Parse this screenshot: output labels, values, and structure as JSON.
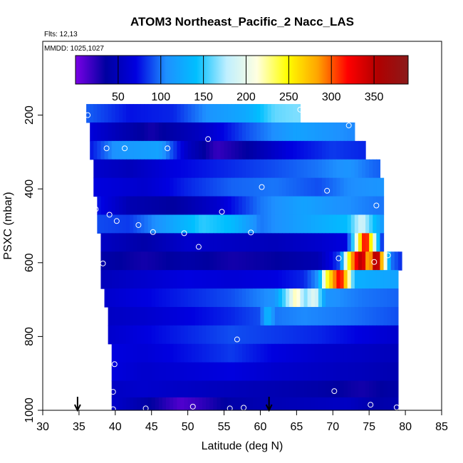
{
  "chart_data": {
    "type": "heatmap",
    "title": "ATOM3 Northeast_Pacific_2 Nacc_LAS",
    "flights_label": "Flts: 12,13",
    "date_label": "MMDD: 1025,1027",
    "xlabel": "Latitude (deg N)",
    "ylabel": "PSXC (mbar)",
    "xlim": [
      30,
      85
    ],
    "ylim": [
      1000,
      0
    ],
    "x_ticks": [
      "30",
      "35",
      "40",
      "45",
      "50",
      "55",
      "60",
      "65",
      "70",
      "75",
      "80",
      "85"
    ],
    "y_ticks": [
      "200",
      "400",
      "600",
      "800",
      "1000"
    ],
    "colorbar": {
      "range": [
        0,
        390
      ],
      "ticks": [
        "50",
        "100",
        "150",
        "200",
        "250",
        "300",
        "350"
      ],
      "colors": [
        "#7a00e6",
        "#0000a0",
        "#0000e0",
        "#1e90ff",
        "#00bfff",
        "#bfefff",
        "#ffffe0",
        "#ffff00",
        "#ffa500",
        "#ff0000",
        "#b00000",
        "#8b1a1a"
      ]
    },
    "pressure_bands": [
      {
        "p_top": 170,
        "p_bot": 220,
        "lat_min": 36.0,
        "lat_max": 65.5,
        "values": [
          [
            36,
            95
          ],
          [
            42,
            75
          ],
          [
            48,
            80
          ],
          [
            53,
            110
          ],
          [
            58,
            125
          ],
          [
            62,
            160
          ],
          [
            65,
            165
          ]
        ]
      },
      {
        "p_top": 220,
        "p_bot": 270,
        "lat_min": 36.5,
        "lat_max": 73.0,
        "values": [
          [
            36,
            70
          ],
          [
            40,
            50
          ],
          [
            45,
            30
          ],
          [
            52,
            55
          ],
          [
            58,
            90
          ],
          [
            65,
            120
          ],
          [
            72,
            105
          ]
        ]
      },
      {
        "p_top": 270,
        "p_bot": 320,
        "lat_min": 36.5,
        "lat_max": 74.5,
        "values": [
          [
            36,
            70
          ],
          [
            40,
            110
          ],
          [
            46,
            120
          ],
          [
            50,
            55
          ],
          [
            54,
            20
          ],
          [
            58,
            35
          ],
          [
            64,
            70
          ],
          [
            70,
            85
          ],
          [
            74,
            80
          ]
        ]
      },
      {
        "p_top": 320,
        "p_bot": 370,
        "lat_min": 37.0,
        "lat_max": 76.5,
        "values": [
          [
            37,
            60
          ],
          [
            42,
            50
          ],
          [
            48,
            70
          ],
          [
            55,
            80
          ],
          [
            62,
            90
          ],
          [
            68,
            100
          ],
          [
            72,
            110
          ],
          [
            76,
            95
          ]
        ]
      },
      {
        "p_top": 370,
        "p_bot": 420,
        "lat_min": 37.0,
        "lat_max": 77.0,
        "values": [
          [
            37,
            70
          ],
          [
            44,
            60
          ],
          [
            50,
            80
          ],
          [
            56,
            95
          ],
          [
            62,
            100
          ],
          [
            68,
            90
          ],
          [
            72,
            105
          ],
          [
            76,
            110
          ]
        ]
      },
      {
        "p_top": 420,
        "p_bot": 470,
        "lat_min": 37.5,
        "lat_max": 77.0,
        "values": [
          [
            37,
            80
          ],
          [
            42,
            45
          ],
          [
            48,
            35
          ],
          [
            54,
            60
          ],
          [
            60,
            100
          ],
          [
            66,
            120
          ],
          [
            70,
            110
          ],
          [
            76,
            100
          ]
        ]
      },
      {
        "p_top": 470,
        "p_bot": 520,
        "lat_min": 37.5,
        "lat_max": 77.0,
        "values": [
          [
            37,
            90
          ],
          [
            42,
            85
          ],
          [
            46,
            110
          ],
          [
            52,
            150
          ],
          [
            56,
            140
          ],
          [
            60,
            100
          ],
          [
            66,
            120
          ],
          [
            72,
            140
          ],
          [
            74,
            190
          ],
          [
            75,
            160
          ],
          [
            77,
            110
          ]
        ]
      },
      {
        "p_top": 520,
        "p_bot": 570,
        "lat_min": 38.0,
        "lat_max": 77.0,
        "values": [
          [
            38,
            55
          ],
          [
            44,
            40
          ],
          [
            50,
            60
          ],
          [
            56,
            55
          ],
          [
            62,
            50
          ],
          [
            68,
            60
          ],
          [
            72,
            70
          ],
          [
            73.5,
            230
          ],
          [
            74.5,
            340
          ],
          [
            75.5,
            220
          ],
          [
            77,
            60
          ]
        ]
      },
      {
        "p_top": 570,
        "p_bot": 620,
        "lat_min": 38.0,
        "lat_max": 79.5,
        "values": [
          [
            38,
            40
          ],
          [
            44,
            30
          ],
          [
            50,
            40
          ],
          [
            56,
            30
          ],
          [
            62,
            35
          ],
          [
            68,
            45
          ],
          [
            71,
            90
          ],
          [
            72,
            230
          ],
          [
            73,
            310
          ],
          [
            74,
            360
          ],
          [
            75,
            260
          ],
          [
            76,
            380
          ],
          [
            77,
            240
          ],
          [
            78,
            100
          ],
          [
            79.5,
            80
          ]
        ]
      },
      {
        "p_top": 620,
        "p_bot": 670,
        "lat_min": 38.0,
        "lat_max": 79.0,
        "values": [
          [
            38,
            50
          ],
          [
            44,
            60
          ],
          [
            50,
            70
          ],
          [
            56,
            65
          ],
          [
            62,
            70
          ],
          [
            66,
            80
          ],
          [
            68,
            110
          ],
          [
            69,
            230
          ],
          [
            70,
            280
          ],
          [
            71,
            330
          ],
          [
            72,
            250
          ],
          [
            73,
            130
          ],
          [
            79,
            120
          ]
        ]
      },
      {
        "p_top": 670,
        "p_bot": 720,
        "lat_min": 38.5,
        "lat_max": 79.0,
        "values": [
          [
            38.5,
            60
          ],
          [
            44,
            70
          ],
          [
            50,
            80
          ],
          [
            56,
            90
          ],
          [
            62,
            110
          ],
          [
            64,
            180
          ],
          [
            65,
            230
          ],
          [
            66,
            160
          ],
          [
            67.5,
            200
          ],
          [
            69,
            110
          ],
          [
            74,
            100
          ],
          [
            79,
            95
          ]
        ]
      },
      {
        "p_top": 720,
        "p_bot": 770,
        "lat_min": 39.0,
        "lat_max": 79.0,
        "values": [
          [
            39,
            55
          ],
          [
            44,
            60
          ],
          [
            50,
            70
          ],
          [
            56,
            80
          ],
          [
            60,
            90
          ],
          [
            61,
            140
          ],
          [
            62,
            100
          ],
          [
            66,
            105
          ],
          [
            72,
            100
          ],
          [
            79,
            90
          ]
        ]
      },
      {
        "p_top": 770,
        "p_bot": 820,
        "lat_min": 39.0,
        "lat_max": 79.0,
        "values": [
          [
            39,
            60
          ],
          [
            44,
            70
          ],
          [
            50,
            80
          ],
          [
            56,
            90
          ],
          [
            62,
            85
          ],
          [
            68,
            80
          ],
          [
            74,
            70
          ],
          [
            79,
            60
          ]
        ]
      },
      {
        "p_top": 820,
        "p_bot": 870,
        "lat_min": 39.5,
        "lat_max": 79.0,
        "values": [
          [
            39.5,
            70
          ],
          [
            44,
            65
          ],
          [
            50,
            75
          ],
          [
            56,
            85
          ],
          [
            62,
            70
          ],
          [
            68,
            60
          ],
          [
            74,
            55
          ],
          [
            79,
            50
          ]
        ]
      },
      {
        "p_top": 870,
        "p_bot": 920,
        "lat_min": 39.5,
        "lat_max": 79.0,
        "values": [
          [
            39.5,
            70
          ],
          [
            44,
            60
          ],
          [
            50,
            65
          ],
          [
            56,
            70
          ],
          [
            62,
            60
          ],
          [
            68,
            55
          ],
          [
            74,
            50
          ],
          [
            79,
            45
          ]
        ]
      },
      {
        "p_top": 920,
        "p_bot": 965,
        "lat_min": 39.5,
        "lat_max": 79.0,
        "values": [
          [
            39.5,
            55
          ],
          [
            44,
            60
          ],
          [
            50,
            55
          ],
          [
            56,
            50
          ],
          [
            62,
            45
          ],
          [
            68,
            40
          ],
          [
            74,
            30
          ],
          [
            79,
            40
          ]
        ]
      },
      {
        "p_top": 965,
        "p_bot": 1000,
        "lat_min": 39.5,
        "lat_max": 79.0,
        "values": [
          [
            39.5,
            60
          ],
          [
            43,
            45
          ],
          [
            46,
            30
          ],
          [
            49,
            12
          ],
          [
            52,
            22
          ],
          [
            56,
            40
          ],
          [
            60,
            45
          ],
          [
            66,
            50
          ],
          [
            72,
            55
          ],
          [
            76,
            40
          ],
          [
            79,
            45
          ]
        ]
      }
    ],
    "sample_points": [
      [
        36.2,
        200
      ],
      [
        65.5,
        185
      ],
      [
        72.2,
        228
      ],
      [
        38.8,
        290
      ],
      [
        41.3,
        290
      ],
      [
        47.2,
        290
      ],
      [
        52.8,
        265
      ],
      [
        77.0,
        355
      ],
      [
        60.2,
        395
      ],
      [
        69.2,
        405
      ],
      [
        37.3,
        455
      ],
      [
        39.2,
        470
      ],
      [
        40.2,
        487
      ],
      [
        43.2,
        498
      ],
      [
        45.2,
        517
      ],
      [
        54.7,
        462
      ],
      [
        49.5,
        520
      ],
      [
        58.7,
        518
      ],
      [
        76.0,
        445
      ],
      [
        51.5,
        557
      ],
      [
        38.3,
        602
      ],
      [
        70.8,
        588
      ],
      [
        75.7,
        598
      ],
      [
        77.6,
        580
      ],
      [
        56.8,
        808
      ],
      [
        39.9,
        875
      ],
      [
        70.2,
        948
      ],
      [
        39.7,
        950
      ],
      [
        39.7,
        997
      ],
      [
        44.2,
        995
      ],
      [
        50.7,
        990
      ],
      [
        55.8,
        995
      ],
      [
        57.7,
        993
      ],
      [
        75.2,
        985
      ],
      [
        78.8,
        992
      ]
    ],
    "arrows": [
      34.8,
      61.2
    ]
  }
}
